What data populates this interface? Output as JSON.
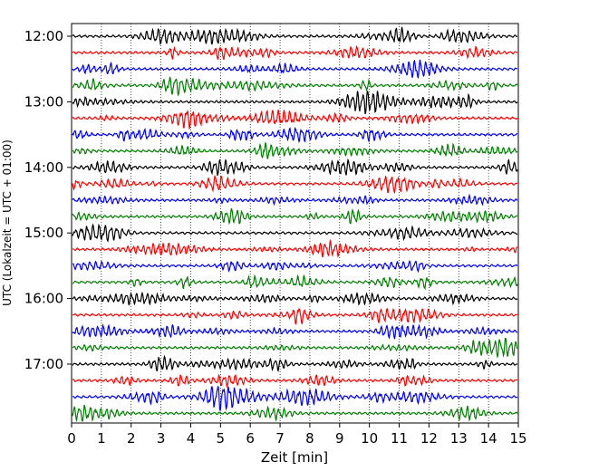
{
  "chart_data": {
    "type": "line",
    "title": "",
    "xlabel": "Zeit  [min]",
    "ylabel": "UTC (Lokalzeit = UTC + 01:00)",
    "xlim": [
      0,
      15
    ],
    "x_ticks": [
      "0",
      "1",
      "2",
      "3",
      "4",
      "5",
      "6",
      "7",
      "8",
      "9",
      "10",
      "11",
      "12",
      "13",
      "14",
      "15"
    ],
    "y_ticks": [
      "12:00",
      "13:00",
      "14:00",
      "15:00",
      "16:00",
      "17:00"
    ],
    "grid": "vertical dotted lines at each minute",
    "trace_interval_minutes": 15,
    "trace_count": 24,
    "trace_colors": [
      "#000000",
      "#ff0000",
      "#0000ff",
      "#008000"
    ]
  }
}
